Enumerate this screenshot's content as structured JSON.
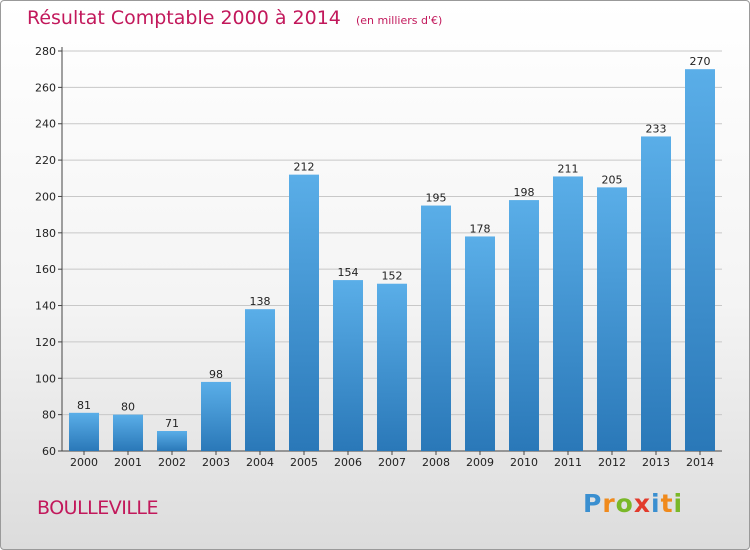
{
  "header": {
    "title": "Résultat Comptable 2000 à 2014",
    "unit": "(en milliers d'€)"
  },
  "footer": {
    "city": "BOULLEVILLE",
    "logo": [
      "P",
      "r",
      "o",
      "x",
      "i",
      "t",
      "i"
    ]
  },
  "colors": {
    "title": "#c2185b",
    "bar_top": "#5aaee8",
    "bar_bottom": "#2a78b8",
    "logo": [
      "#3a8fd0",
      "#f08a1c",
      "#7ab828",
      "#e23a2c",
      "#3a8fd0",
      "#f08a1c",
      "#7ab828"
    ]
  },
  "chart_data": {
    "type": "bar",
    "title": "Résultat Comptable 2000 à 2014",
    "subtitle": "(en milliers d'€)",
    "xlabel": "",
    "ylabel": "",
    "ylim": [
      60,
      280
    ],
    "yticks": [
      60,
      80,
      100,
      120,
      140,
      160,
      180,
      200,
      220,
      240,
      260,
      280
    ],
    "grid": true,
    "categories": [
      "2000",
      "2001",
      "2002",
      "2003",
      "2004",
      "2005",
      "2006",
      "2007",
      "2008",
      "2009",
      "2010",
      "2011",
      "2012",
      "2013",
      "2014"
    ],
    "values": [
      81,
      80,
      71,
      98,
      138,
      212,
      154,
      152,
      195,
      178,
      198,
      211,
      205,
      233,
      270
    ]
  }
}
